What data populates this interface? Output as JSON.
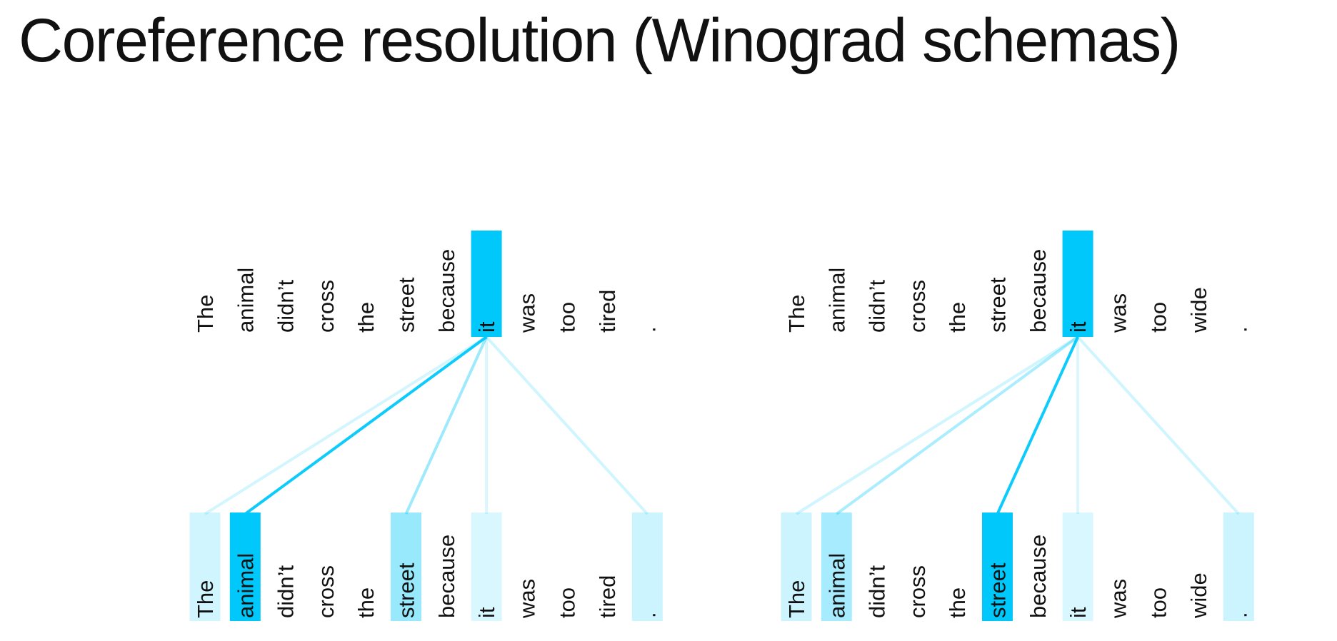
{
  "title": "Coreference resolution (Winograd schemas)",
  "accent_color": "#00c8fb",
  "panels": [
    {
      "tokens": [
        "The",
        "animal",
        "didn’t",
        "cross",
        "the",
        "street",
        "because",
        "it",
        "was",
        "too",
        "tired",
        "."
      ],
      "query_index": 7,
      "attention_from_it": [
        0.18,
        1.0,
        0.0,
        0.0,
        0.0,
        0.4,
        0.0,
        0.15,
        0.0,
        0.0,
        0.0,
        0.2
      ]
    },
    {
      "tokens": [
        "The",
        "animal",
        "didn’t",
        "cross",
        "the",
        "street",
        "because",
        "it",
        "was",
        "too",
        "wide",
        "."
      ],
      "query_index": 7,
      "attention_from_it": [
        0.2,
        0.35,
        0.0,
        0.0,
        0.0,
        1.0,
        0.0,
        0.15,
        0.0,
        0.0,
        0.0,
        0.2
      ]
    }
  ]
}
